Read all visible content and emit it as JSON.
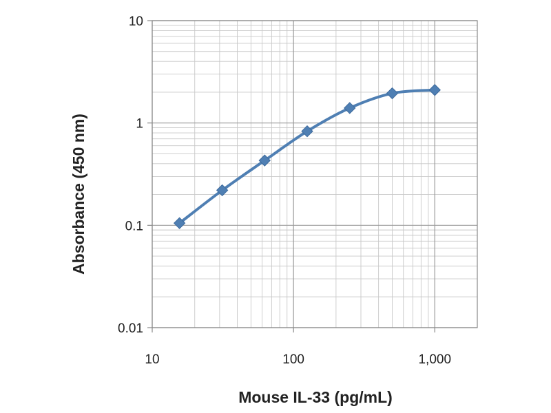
{
  "chart_data": {
    "type": "line",
    "title": "",
    "xlabel": "Mouse IL-33 (pg/mL)",
    "ylabel": "Absorbance (450 nm)",
    "x_scale": "log",
    "y_scale": "log",
    "xlim": [
      10,
      2000
    ],
    "ylim": [
      0.01,
      10
    ],
    "x_ticks": [
      10,
      100,
      1000
    ],
    "x_tick_labels": [
      "10",
      "100",
      "1,000"
    ],
    "y_ticks": [
      0.01,
      0.1,
      1,
      10
    ],
    "y_tick_labels": [
      "0.01",
      "0.1",
      "1",
      "10"
    ],
    "grid": true,
    "legend": "none",
    "series": [
      {
        "x": [
          15.6,
          31.3,
          62.5,
          125,
          250,
          500,
          1000
        ],
        "y": [
          0.105,
          0.22,
          0.43,
          0.83,
          1.4,
          1.95,
          2.1
        ],
        "color": "#4f7fb3",
        "marker": "diamond"
      }
    ]
  }
}
